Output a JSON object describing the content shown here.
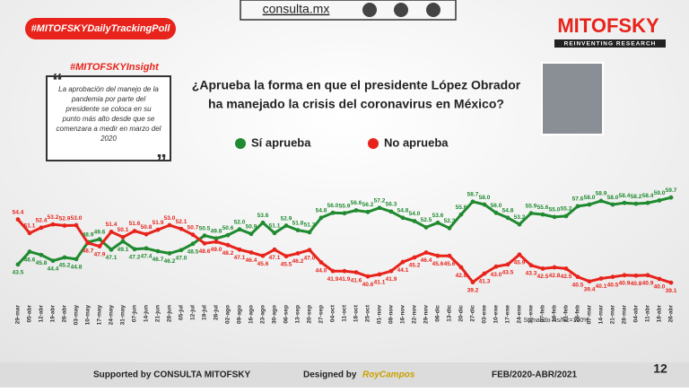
{
  "header": {
    "hashtag": "#MITOFSKYDailyTrackingPoll",
    "site": "consulta.mx",
    "brand": "MITOFSKY",
    "tagline": "REINVENTING RESEARCH"
  },
  "insight": {
    "tag": "#MITOFSKYInsight",
    "lines": [
      "La aprobación del manejo de la",
      "pandemia por parte del",
      "presidente  se coloca en su",
      "punto más alto desde que se",
      "comenzara a medir en marzo del",
      "2020"
    ]
  },
  "footer": {
    "supported": "Supported by  CONSULTA  MITOFSKY",
    "designed": "Designed by",
    "designer": "RoyCampos",
    "period": "FEB/2020-ABR/2021",
    "page": "12"
  },
  "chart_data": {
    "type": "line",
    "title": [
      "¿Aprueba la forma en que el presidente López Obrador",
      "ha manejado la crisis del coronavirus en México?"
    ],
    "note": "Sumando Ns/Nc=100%",
    "categories": [
      "29-mar",
      "05-abr",
      "12-abr",
      "19-abr",
      "26-abr",
      "03-may",
      "10-may",
      "17-may",
      "24-may",
      "31-may",
      "07-jun",
      "14-jun",
      "21-jun",
      "28-jun",
      "05-jul",
      "12-jul",
      "19-jul",
      "26-jul",
      "02-ago",
      "09-ago",
      "16-ago",
      "23-ago",
      "30-ago",
      "06-sep",
      "13-sep",
      "20-sep",
      "27-sep",
      "04-oct",
      "11-oct",
      "18-oct",
      "25-oct",
      "01-nov",
      "08-nov",
      "16-nov",
      "22-nov",
      "29-nov",
      "06-dic",
      "13-dic",
      "20-dic",
      "27-dic",
      "03-ene",
      "10-ene",
      "17-ene",
      "24-ene",
      "31-ene",
      "07-feb",
      "14-feb",
      "21-feb",
      "28-feb",
      "07-mar",
      "14-mar",
      "21-mar",
      "28-mar",
      "04-abr",
      "11-abr",
      "18-abr",
      "26-abr"
    ],
    "ylim": [
      35,
      63
    ],
    "series": [
      {
        "name": "Sí aprueba",
        "color": "#1f8a2f",
        "values": [
          43.5,
          46.6,
          45.8,
          44.4,
          45.2,
          44.8,
          48.9,
          49.6,
          47.1,
          49.1,
          47.2,
          47.4,
          46.7,
          46.2,
          47.0,
          48.5,
          50.5,
          49.8,
          50.6,
          52.0,
          50.9,
          53.6,
          51.1,
          52.9,
          51.8,
          51.3,
          54.8,
          56.0,
          55.9,
          56.6,
          56.2,
          57.2,
          56.3,
          54.8,
          54.0,
          52.5,
          53.6,
          52.3,
          55.6,
          58.7,
          58.0,
          56.0,
          54.8,
          53.2,
          55.9,
          55.6,
          55.0,
          55.2,
          57.6,
          58.0,
          58.9,
          58.0,
          58.4,
          58.2,
          58.4,
          59.0,
          59.7
        ],
        "value_labels": [
          "43.5",
          "46.6",
          "45.8",
          "44.4",
          "45.2",
          "44.8",
          "48.9",
          "49.6",
          "47.1",
          "49.1",
          "47.2",
          "47.4",
          "46.7",
          "46.2",
          "47.0",
          "48.5",
          "50.5",
          "49.8",
          "50.6",
          "52.0",
          "50.9",
          "53.6",
          "51.1",
          "52.9",
          "51.8",
          "51.3",
          "54.8",
          "56.0",
          "55.9",
          "56.6",
          "56.2",
          "57.2",
          "56.3",
          "54.8",
          "54.0",
          "52.5",
          "53.6",
          "52.3",
          "55.6",
          "58.7",
          "58.0",
          "56.0",
          "54.8",
          "53.2",
          "55.9",
          "55.6",
          "55.0",
          "55.2",
          "57.6",
          "58.0",
          "58.9",
          "58.0",
          "58.4",
          "58.2",
          "58.4",
          "59.0",
          "59.7"
        ]
      },
      {
        "name": "No aprueba",
        "color": "#e8231b",
        "values": [
          54.4,
          51.1,
          52.4,
          53.2,
          52.9,
          53.0,
          48.7,
          47.9,
          51.4,
          50.1,
          51.6,
          50.8,
          51.9,
          53.0,
          52.1,
          50.7,
          48.6,
          49.0,
          48.2,
          47.1,
          46.4,
          45.6,
          47.1,
          45.5,
          46.2,
          47.0,
          44.0,
          41.9,
          41.9,
          41.6,
          40.6,
          41.1,
          41.9,
          44.1,
          45.2,
          46.4,
          45.6,
          45.6,
          42.8,
          39.2,
          41.3,
          43.0,
          43.5,
          45.9,
          43.3,
          42.5,
          42.8,
          42.5,
          40.5,
          39.4,
          40.1,
          40.5,
          40.9,
          40.8,
          40.9,
          40.0,
          39.1
        ],
        "value_labels": [
          "54.4",
          "51.1",
          "52.4",
          "53.2",
          "52.9",
          "53.0",
          "48.7",
          "47.9",
          "51.4",
          "50.1",
          "51.6",
          "50.8",
          "51.9",
          "53.0",
          "52.1",
          "50.7",
          "48.6",
          "49.0",
          "48.2",
          "47.1",
          "46.4",
          "45.6",
          "47.1",
          "45.5",
          "46.2",
          "47.0",
          "44.0",
          "41.9",
          "41.9",
          "41.6",
          "40.6",
          "41.1",
          "41.9",
          "44.1",
          "45.2",
          "46.4",
          "45.6",
          "45.6",
          "42.8",
          "39.2",
          "41.3",
          "43.0",
          "43.5",
          "45.9",
          "43.3",
          "42.5",
          "42.8",
          "42.5",
          "40.5",
          "39.4",
          "40.1",
          "40.5",
          "40.9",
          "40.8",
          "40.9",
          "40.0",
          "39.1"
        ]
      }
    ]
  }
}
